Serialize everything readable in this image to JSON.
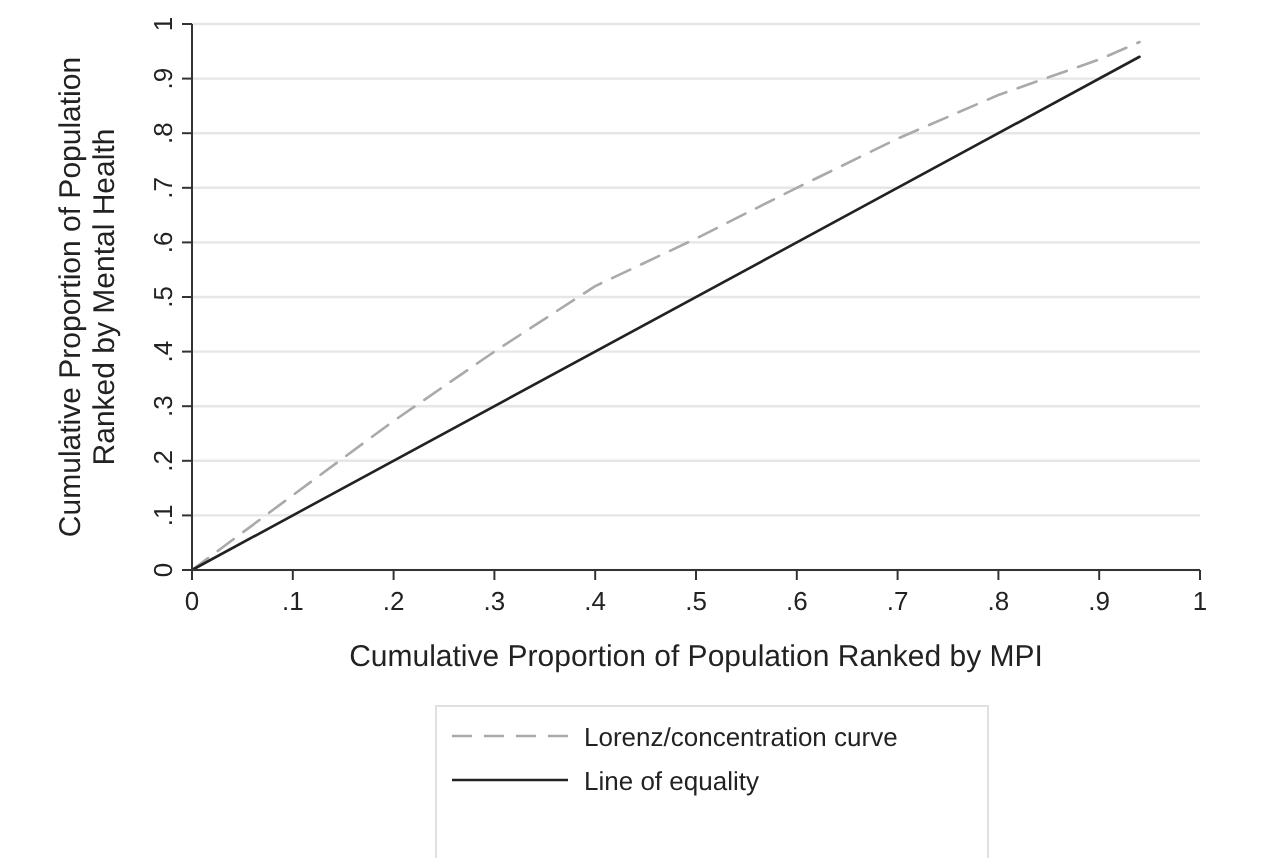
{
  "chart_data": {
    "type": "line",
    "xlabel": "Cumulative Proportion of Population Ranked by MPI",
    "ylabel": "Cumulative Proportion of Population\nRanked by Mental Health",
    "x": [
      0,
      0.1,
      0.2,
      0.3,
      0.4,
      0.5,
      0.6,
      0.7,
      0.8,
      0.9,
      0.94
    ],
    "series": [
      {
        "name": "Lorenz/concentration curve",
        "color": "#aaaaaa",
        "line_style": "dashed",
        "values": [
          0,
          0.137,
          0.273,
          0.4,
          0.52,
          0.607,
          0.7,
          0.79,
          0.87,
          0.935,
          0.967
        ]
      },
      {
        "name": "Line of equality",
        "color": "#222222",
        "line_style": "solid",
        "x": [
          0,
          0.94
        ],
        "values": [
          0,
          0.94
        ]
      }
    ],
    "xlim": [
      0,
      1
    ],
    "ylim": [
      0,
      1
    ],
    "xticks": [
      0,
      {
        "value": 0.1,
        "label": ".1"
      },
      {
        "value": 0.2,
        "label": ".2"
      },
      {
        "value": 0.3,
        "label": ".3"
      },
      {
        "value": 0.4,
        "label": ".4"
      },
      {
        "value": 0.5,
        "label": ".5"
      },
      {
        "value": 0.6,
        "label": ".6"
      },
      {
        "value": 0.7,
        "label": ".7"
      },
      {
        "value": 0.8,
        "label": ".8"
      },
      {
        "value": 0.9,
        "label": ".9"
      },
      1
    ],
    "yticks": [
      0,
      {
        "value": 0.1,
        "label": ".1"
      },
      {
        "value": 0.2,
        "label": ".2"
      },
      {
        "value": 0.3,
        "label": ".3"
      },
      {
        "value": 0.4,
        "label": ".4"
      },
      {
        "value": 0.5,
        "label": ".5"
      },
      {
        "value": 0.6,
        "label": ".6"
      },
      {
        "value": 0.7,
        "label": ".7"
      },
      {
        "value": 0.8,
        "label": ".8"
      },
      {
        "value": 0.9,
        "label": ".9"
      },
      1
    ],
    "grid": "y",
    "legend": "bottom"
  }
}
